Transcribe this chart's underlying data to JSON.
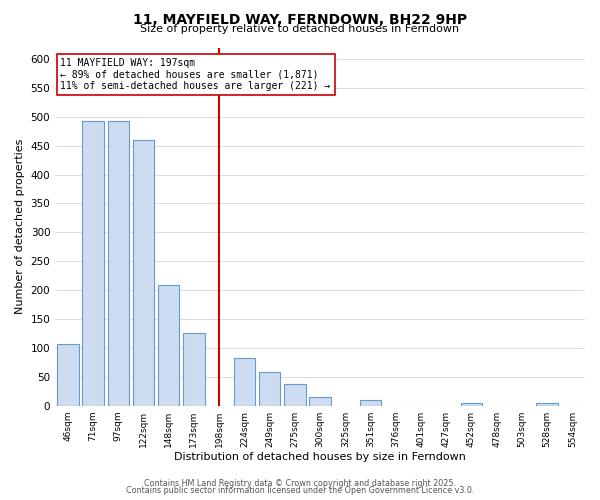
{
  "title": "11, MAYFIELD WAY, FERNDOWN, BH22 9HP",
  "subtitle": "Size of property relative to detached houses in Ferndown",
  "xlabel": "Distribution of detached houses by size in Ferndown",
  "ylabel": "Number of detached properties",
  "bar_color": "#cddcf0",
  "bar_edge_color": "#6699cc",
  "bin_labels": [
    "46sqm",
    "71sqm",
    "97sqm",
    "122sqm",
    "148sqm",
    "173sqm",
    "198sqm",
    "224sqm",
    "249sqm",
    "275sqm",
    "300sqm",
    "325sqm",
    "351sqm",
    "376sqm",
    "401sqm",
    "427sqm",
    "452sqm",
    "478sqm",
    "503sqm",
    "528sqm",
    "554sqm"
  ],
  "bar_heights": [
    107,
    493,
    493,
    460,
    209,
    126,
    0,
    82,
    58,
    38,
    15,
    0,
    10,
    0,
    0,
    0,
    5,
    0,
    0,
    5,
    0
  ],
  "ylim": [
    0,
    620
  ],
  "yticks": [
    0,
    50,
    100,
    150,
    200,
    250,
    300,
    350,
    400,
    450,
    500,
    550,
    600
  ],
  "property_label": "11 MAYFIELD WAY: 197sqm",
  "annotation_line1": "← 89% of detached houses are smaller (1,871)",
  "annotation_line2": "11% of semi-detached houses are larger (221) →",
  "vline_bin_index": 6,
  "vline_color": "#cc0000",
  "annotation_box_color": "#ffffff",
  "annotation_box_edge": "#cc0000",
  "footer_line1": "Contains HM Land Registry data © Crown copyright and database right 2025.",
  "footer_line2": "Contains public sector information licensed under the Open Government Licence v3.0.",
  "background_color": "#ffffff",
  "grid_color": "#d0d8e8"
}
